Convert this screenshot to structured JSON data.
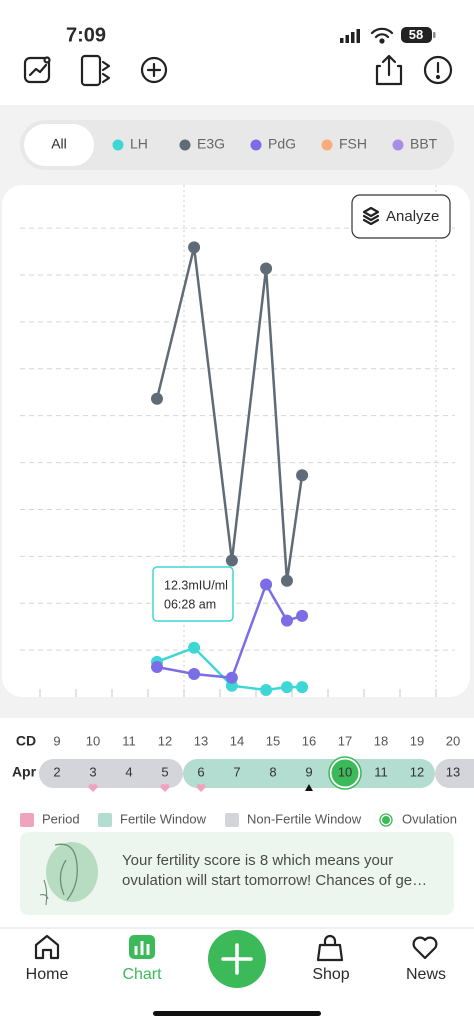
{
  "status_bar": {
    "time": "7:09",
    "battery": "58"
  },
  "filters": {
    "all": "All",
    "extra": [
      {
        "name": "FSH",
        "color": "#f6ad7b"
      },
      {
        "name": "BBT",
        "color": "#a98be8"
      }
    ]
  },
  "analyze": "Analyze",
  "chart_data": {
    "type": "line",
    "x": [
      12.25,
      13.28,
      14.33,
      15.28,
      15.86,
      16.28
    ],
    "series": [
      {
        "name": "LH",
        "color": "#3fd6d6",
        "values": [
          0.75,
          1.05,
          0.24,
          0.15,
          0.21,
          0.21
        ]
      },
      {
        "name": "E3G",
        "color": "#5f6b76",
        "values": [
          6.36,
          9.59,
          2.91,
          9.14,
          2.48,
          4.73
        ]
      },
      {
        "name": "PdG",
        "color": "#7a6de6",
        "values": [
          0.64,
          0.49,
          0.41,
          2.4,
          1.63,
          1.73
        ]
      }
    ],
    "xlim": [
      9,
      20.9
    ],
    "ylim": [
      0,
      10.6
    ],
    "xticks": [
      9,
      10,
      11,
      12,
      13,
      14,
      15,
      16,
      17,
      18,
      19,
      20
    ],
    "yticks": [
      1,
      2,
      3,
      4,
      5,
      6,
      7,
      8,
      9,
      10
    ],
    "highlight_x": [
      13,
      20
    ],
    "grid": true
  },
  "tooltip": [
    "12.3mIU/ml",
    "06:28 am"
  ],
  "cycle": {
    "cd_label": "CD",
    "cd": [
      9,
      10,
      11,
      12,
      13,
      14,
      15,
      16,
      17,
      18,
      19,
      20
    ],
    "month": "Apr",
    "dates": [
      2,
      3,
      4,
      5,
      6,
      7,
      8,
      9,
      10,
      11,
      12,
      13
    ],
    "phase": [
      2,
      2,
      2,
      2,
      1,
      1,
      1,
      1,
      1,
      1,
      1,
      2
    ],
    "period": [
      false,
      true,
      false,
      true,
      true,
      false,
      false,
      false,
      false,
      false,
      false,
      false
    ],
    "ovulation_index": 8,
    "today_index": 7
  },
  "legend": [
    {
      "label": "Period",
      "color": "#f0a3bd"
    },
    {
      "label": "Fertile Window",
      "color": "#b3ddd0"
    },
    {
      "label": "Non-Fertile Window",
      "color": "#d3d5da"
    },
    {
      "label": "Ovulation",
      "color": "#3cba5a"
    }
  ],
  "message": [
    "Your fertility score is 8 which means your",
    "ovulation will start tomorrow! Chances of ge…"
  ],
  "nav": [
    "Home",
    "Chart",
    "Shop",
    "News"
  ]
}
